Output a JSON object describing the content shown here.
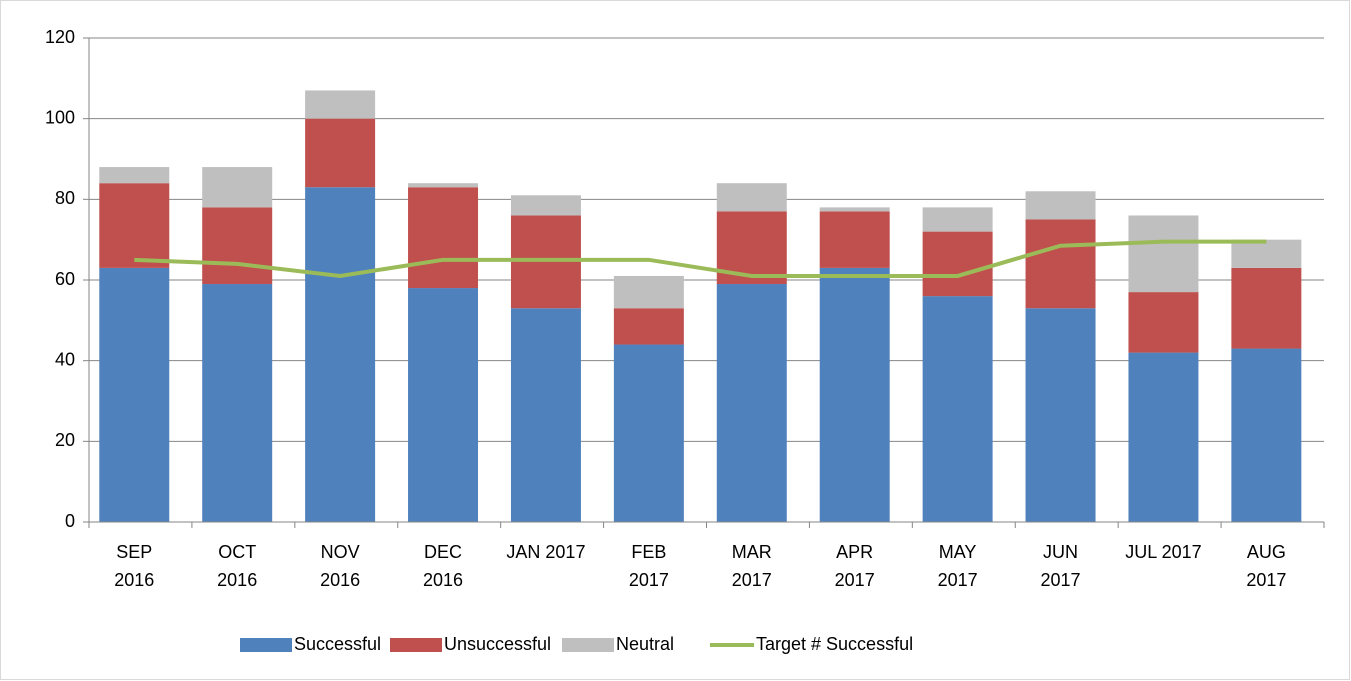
{
  "chart_data": {
    "type": "stacked-bar-line",
    "categories": [
      "SEP 2016",
      "OCT 2016",
      "NOV 2016",
      "DEC 2016",
      "JAN 2017",
      "FEB 2017",
      "MAR 2017",
      "APR 2017",
      "MAY 2017",
      "JUN 2017",
      "JUL 2017",
      "AUG 2017"
    ],
    "series": [
      {
        "name": "Successful",
        "color": "#4f81bd",
        "type": "bar",
        "values": [
          63,
          59,
          83,
          58,
          53,
          44,
          59,
          63,
          56,
          53,
          42,
          43
        ]
      },
      {
        "name": "Unsuccessful",
        "color": "#c0504d",
        "type": "bar",
        "values": [
          21,
          19,
          17,
          25,
          23,
          9,
          18,
          14,
          16,
          22,
          15,
          20
        ]
      },
      {
        "name": "Neutral",
        "color": "#bfbfbf",
        "type": "bar",
        "values": [
          4,
          10,
          7,
          1,
          5,
          8,
          7,
          1,
          6,
          7,
          19,
          7
        ]
      },
      {
        "name": "Target # Successful",
        "color": "#9bbb59",
        "type": "line",
        "values": [
          65,
          64,
          61,
          65,
          65,
          65,
          61,
          61,
          61,
          68.5,
          69.5,
          69.5
        ]
      }
    ],
    "ylim": [
      0,
      120
    ],
    "yticks": [
      0,
      20,
      40,
      60,
      80,
      100,
      120
    ],
    "grid": true,
    "legend": "bottom"
  }
}
